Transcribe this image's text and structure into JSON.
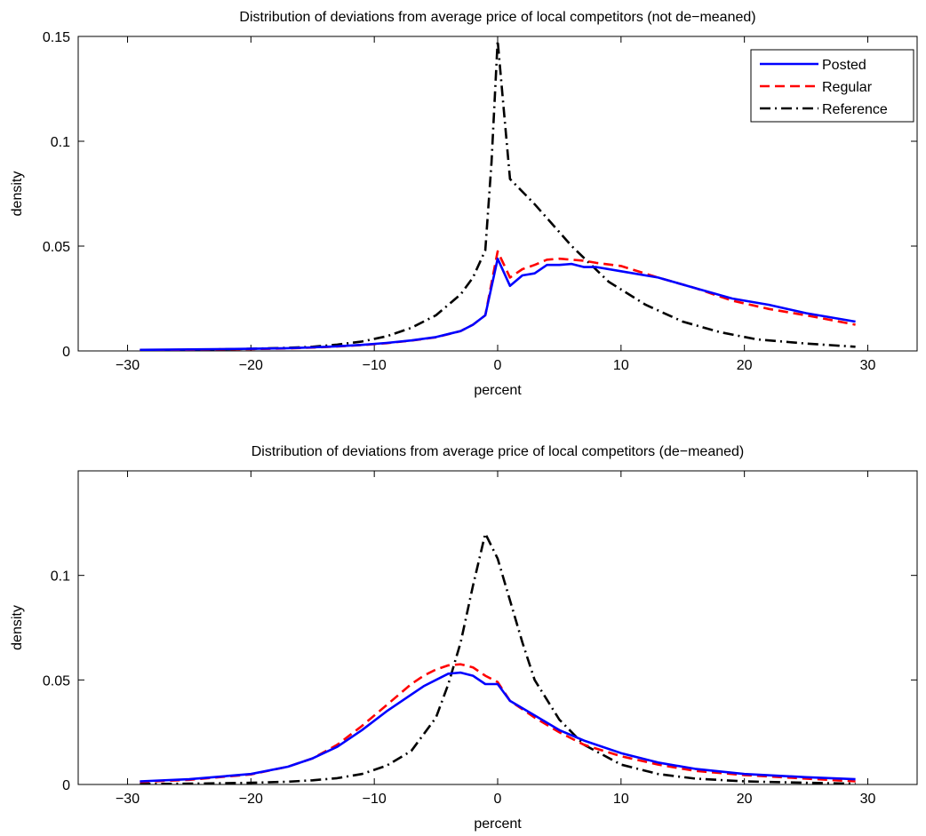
{
  "chart_data": [
    {
      "type": "line",
      "title": "Distribution of deviations from average price of local competitors (not de−meaned)",
      "xlabel": "percent",
      "ylabel": "density",
      "xlim": [
        -34,
        34
      ],
      "ylim": [
        0,
        0.15
      ],
      "xticks": [
        -30,
        -20,
        -10,
        0,
        10,
        20,
        30
      ],
      "xtick_labels": [
        "−30",
        "−20",
        "−10",
        "0",
        "10",
        "20",
        "30"
      ],
      "yticks": [
        0,
        0.05,
        0.1,
        0.15
      ],
      "ytick_labels": [
        "0",
        "0.05",
        "0.1",
        "0.15"
      ],
      "legend_position": "top-right",
      "series": [
        {
          "name": "Posted",
          "color": "#0000ff",
          "dash": "solid",
          "x": [
            -29,
            -25,
            -20,
            -17,
            -15,
            -13,
            -11,
            -9,
            -7,
            -5,
            -3,
            -2,
            -1,
            0,
            1,
            2,
            3,
            4,
            5,
            6,
            7,
            8,
            10,
            13,
            16,
            19,
            22,
            25,
            29
          ],
          "y": [
            0.0005,
            0.0007,
            0.001,
            0.0013,
            0.0017,
            0.0022,
            0.0029,
            0.0038,
            0.005,
            0.0066,
            0.0095,
            0.0125,
            0.017,
            0.044,
            0.031,
            0.036,
            0.037,
            0.041,
            0.041,
            0.0415,
            0.04,
            0.04,
            0.038,
            0.035,
            0.03,
            0.025,
            0.022,
            0.018,
            0.014
          ]
        },
        {
          "name": "Regular",
          "color": "#ff0000",
          "dash": "dashed",
          "x": [
            -29,
            -25,
            -20,
            -17,
            -15,
            -13,
            -11,
            -9,
            -7,
            -5,
            -3,
            -2,
            -1,
            0,
            1,
            2,
            3,
            4,
            5,
            6,
            7,
            8,
            10,
            13,
            16,
            19,
            22,
            25,
            29
          ],
          "y": [
            0.0004,
            0.0006,
            0.0009,
            0.0012,
            0.0016,
            0.0021,
            0.0028,
            0.0037,
            0.0049,
            0.0065,
            0.0095,
            0.0125,
            0.017,
            0.0475,
            0.035,
            0.039,
            0.041,
            0.0435,
            0.044,
            0.0435,
            0.043,
            0.042,
            0.0405,
            0.035,
            0.03,
            0.024,
            0.02,
            0.017,
            0.0125
          ]
        },
        {
          "name": "Reference",
          "color": "#000000",
          "dash": "dashdot",
          "x": [
            -29,
            -25,
            -20,
            -17,
            -15,
            -13,
            -11,
            -9,
            -7,
            -5,
            -3,
            -2,
            -1,
            -0.5,
            0,
            0.5,
            1,
            3,
            6,
            9,
            12,
            15,
            18,
            21,
            25,
            29
          ],
          "y": [
            0.0003,
            0.0005,
            0.001,
            0.0015,
            0.002,
            0.003,
            0.0045,
            0.007,
            0.011,
            0.017,
            0.027,
            0.035,
            0.048,
            0.09,
            0.148,
            0.115,
            0.082,
            0.07,
            0.05,
            0.033,
            0.022,
            0.014,
            0.009,
            0.0055,
            0.0035,
            0.002
          ]
        }
      ]
    },
    {
      "type": "line",
      "title": "Distribution of deviations from average price of local competitors (de−meaned)",
      "xlabel": "percent",
      "ylabel": "density",
      "xlim": [
        -34,
        34
      ],
      "ylim": [
        0,
        0.15
      ],
      "xticks": [
        -30,
        -20,
        -10,
        0,
        10,
        20,
        30
      ],
      "xtick_labels": [
        "−30",
        "−20",
        "−10",
        "0",
        "10",
        "20",
        "30"
      ],
      "yticks": [
        0,
        0.05,
        0.1
      ],
      "ytick_labels": [
        "0",
        "0.05",
        "0.1"
      ],
      "series": [
        {
          "name": "Posted",
          "color": "#0000ff",
          "dash": "solid",
          "x": [
            -29,
            -25,
            -20,
            -17,
            -15,
            -13,
            -11,
            -9,
            -7,
            -6,
            -5,
            -4,
            -3,
            -2,
            -1,
            0,
            1,
            3,
            5,
            7,
            10,
            13,
            16,
            20,
            25,
            29
          ],
          "y": [
            0.0015,
            0.0025,
            0.005,
            0.0085,
            0.0125,
            0.018,
            0.026,
            0.035,
            0.043,
            0.047,
            0.05,
            0.053,
            0.0535,
            0.052,
            0.048,
            0.048,
            0.04,
            0.033,
            0.026,
            0.021,
            0.015,
            0.0105,
            0.0075,
            0.005,
            0.0035,
            0.0025
          ]
        },
        {
          "name": "Regular",
          "color": "#ff0000",
          "dash": "dashed",
          "x": [
            -29,
            -25,
            -20,
            -17,
            -15,
            -13,
            -11,
            -9,
            -7,
            -6,
            -5,
            -4,
            -3,
            -2,
            -1,
            0,
            1,
            3,
            5,
            7,
            10,
            13,
            16,
            20,
            25,
            29
          ],
          "y": [
            0.0012,
            0.0022,
            0.0048,
            0.0085,
            0.0125,
            0.019,
            0.028,
            0.038,
            0.048,
            0.052,
            0.055,
            0.057,
            0.0575,
            0.056,
            0.052,
            0.049,
            0.04,
            0.032,
            0.025,
            0.019,
            0.0135,
            0.0095,
            0.0065,
            0.0045,
            0.0028,
            0.0015
          ]
        },
        {
          "name": "Reference",
          "color": "#000000",
          "dash": "dashdot",
          "x": [
            -29,
            -25,
            -20,
            -17,
            -15,
            -13,
            -11,
            -9,
            -7,
            -5,
            -4,
            -3,
            -2,
            -1,
            0,
            1,
            2,
            3,
            5,
            7,
            10,
            13,
            16,
            20,
            25,
            29
          ],
          "y": [
            0.0002,
            0.0004,
            0.0008,
            0.0013,
            0.002,
            0.003,
            0.005,
            0.009,
            0.016,
            0.032,
            0.048,
            0.068,
            0.095,
            0.12,
            0.108,
            0.088,
            0.068,
            0.05,
            0.031,
            0.019,
            0.0095,
            0.005,
            0.0028,
            0.0015,
            0.0008,
            0.0004
          ]
        }
      ]
    }
  ]
}
